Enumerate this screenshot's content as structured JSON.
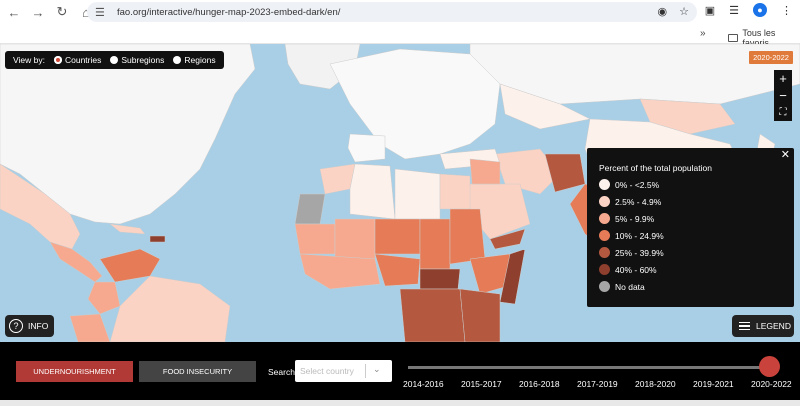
{
  "browser": {
    "url": "fao.org/interactive/hunger-map-2023-embed-dark/en/",
    "bookmarks_label": "Tous les favoris"
  },
  "viewby": {
    "label": "View by:",
    "options": [
      "Countries",
      "Subregions",
      "Regions"
    ],
    "selected": "Countries"
  },
  "period_badge": "2020-2022",
  "legend": {
    "title": "Percent of the total population",
    "items": [
      {
        "label": "0% - <2.5%",
        "color": "#fdf1ec"
      },
      {
        "label": "2.5% - 4.9%",
        "color": "#fbd3c4"
      },
      {
        "label": "5% - 9.9%",
        "color": "#f6a98e"
      },
      {
        "label": "10% - 24.9%",
        "color": "#e57b57"
      },
      {
        "label": "25% - 39.9%",
        "color": "#b4583f"
      },
      {
        "label": "40% - 60%",
        "color": "#8e3f2d"
      },
      {
        "label": "No data",
        "color": "#a6a6a6"
      }
    ]
  },
  "controls": {
    "info_label": "INFO",
    "legend_label": "LEGEND",
    "undernourishment_label": "UNDERNOURISHMENT",
    "food_insecurity_label": "FOOD INSECURITY",
    "search_label": "Search:",
    "search_placeholder": "Select country"
  },
  "timeline": {
    "years": [
      "2014-2016",
      "2015-2017",
      "2016-2018",
      "2017-2019",
      "2018-2020",
      "2019-2021",
      "2020-2022"
    ],
    "selected": "2020-2022"
  },
  "colors": {
    "ocean": "#a8cfe6",
    "accent_red": "#b23a36",
    "badge_orange": "#e07a3a"
  }
}
